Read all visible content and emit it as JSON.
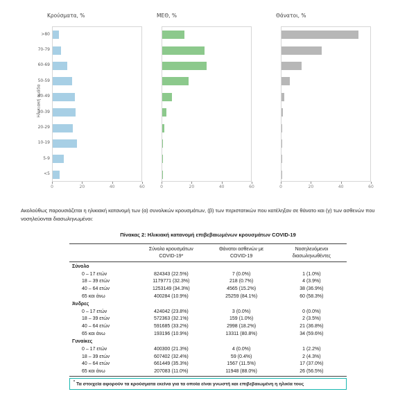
{
  "charts": {
    "y_axis_title": "Ηλικιακή ομάδα",
    "age_groups": [
      ">80",
      "70-79",
      "60-69",
      "50-59",
      "40-49",
      "30-39",
      "20-29",
      "10-19",
      "5-9",
      "<5"
    ]
  },
  "chart_data": [
    {
      "type": "bar",
      "orientation": "horizontal",
      "title": "Κρούσματα, %",
      "categories": [
        ">80",
        "70-79",
        "60-69",
        "50-59",
        "40-49",
        "30-39",
        "20-29",
        "10-19",
        "5-9",
        "<5"
      ],
      "values": [
        4.2,
        5.5,
        9.7,
        13,
        14.8,
        15.7,
        13.4,
        16.6,
        7.4,
        4.6
      ],
      "color": "#a7cfe5",
      "xlim": [
        0,
        60
      ],
      "x_ticks": [
        0,
        20,
        40,
        60
      ],
      "ylabel": "Ηλικιακή ομάδα",
      "grid": false,
      "legend": "none"
    },
    {
      "type": "bar",
      "orientation": "horizontal",
      "title": "ΜΕΘ, %",
      "categories": [
        ">80",
        "70-79",
        "60-69",
        "50-59",
        "40-49",
        "30-39",
        "20-29",
        "10-19",
        "5-9",
        "<5"
      ],
      "values": [
        15,
        28.5,
        30,
        18,
        6.5,
        3,
        1.2,
        0.5,
        0.2,
        0.5
      ],
      "color": "#8cc98c",
      "xlim": [
        0,
        60
      ],
      "x_ticks": [
        0,
        20,
        40,
        60
      ],
      "grid": false,
      "legend": "none"
    },
    {
      "type": "bar",
      "orientation": "horizontal",
      "title": "Θάνατοι, %",
      "categories": [
        ">80",
        "70-79",
        "60-69",
        "50-59",
        "40-49",
        "30-39",
        "20-29",
        "10-19",
        "5-9",
        "<5"
      ],
      "values": [
        52,
        27,
        13.5,
        5.5,
        2,
        0.8,
        0.3,
        0.1,
        0.1,
        0.2
      ],
      "color": "#b7b7b7",
      "xlim": [
        0,
        60
      ],
      "x_ticks": [
        0,
        20,
        40,
        60
      ],
      "grid": false,
      "legend": "none"
    }
  ],
  "intro_text": "Ακολούθως παρουσιάζεται η ηλικιακή κατανομή των (α) συνολικών κρουσμάτων, (β) των περιστατικών που κατέληξαν σε θάνατο και (γ) των ασθενών που νοσηλεύονται διασωληνωμένοι:",
  "table": {
    "title": "Πίνακας 2: Ηλικιακή κατανομή επιβεβαιωμένων κρουσμάτων COVID-19",
    "columns": [
      {
        "line1": "Σύνολο κρουσμάτων",
        "line2": "COVID-19*"
      },
      {
        "line1": "Θάνατοι ασθενών με",
        "line2": "COVID-19"
      },
      {
        "line1": "Νοσηλευόμενοι",
        "line2": "διασωληνωθέντες"
      }
    ],
    "sections": [
      {
        "label": "Σύνολο",
        "rows": [
          {
            "label": "0 – 17 ετών",
            "values": [
              "824343 (22.5%)",
              "7 (0.0%)",
              "1 (1.0%)"
            ]
          },
          {
            "label": "18 – 39 ετών",
            "values": [
              "1179771 (32.3%)",
              "218 (0.7%)",
              "4 (3.9%)"
            ]
          },
          {
            "label": "40 – 64 ετών",
            "values": [
              "1253149 (34.3%)",
              "4565 (15.2%)",
              "38 (36.9%)"
            ]
          },
          {
            "label": "65 και άνω",
            "values": [
              "400284 (10.9%)",
              "25259 (84.1%)",
              "60 (58.3%)"
            ]
          }
        ]
      },
      {
        "label": "Άνδρες",
        "rows": [
          {
            "label": "0 – 17 ετών",
            "values": [
              "424042 (23.8%)",
              "3 (0.0%)",
              "0 (0.0%)"
            ]
          },
          {
            "label": "18 – 39 ετών",
            "values": [
              "572363 (32.1%)",
              "159 (1.0%)",
              "2 (3.5%)"
            ]
          },
          {
            "label": "40 – 64 ετών",
            "values": [
              "591685 (33.2%)",
              "2998 (18.2%)",
              "21 (36.8%)"
            ]
          },
          {
            "label": "65 και άνω",
            "values": [
              "193196 (10.9%)",
              "13311 (80.8%)",
              "34 (59.6%)"
            ]
          }
        ]
      },
      {
        "label": "Γυναίκες",
        "rows": [
          {
            "label": "0 – 17 ετών",
            "values": [
              "400300 (21.3%)",
              "4 (0.0%)",
              "1 (2.2%)"
            ]
          },
          {
            "label": "18 – 39 ετών",
            "values": [
              "607402 (32.4%)",
              "59 (0.4%)",
              "2 (4.3%)"
            ]
          },
          {
            "label": "40 – 64 ετών",
            "values": [
              "661449 (35.3%)",
              "1567 (11.5%)",
              "17 (37.0%)"
            ]
          },
          {
            "label": "65 και άνω",
            "values": [
              "207083 (11.0%)",
              "11948 (88.0%)",
              "26 (56.5%)"
            ]
          }
        ]
      }
    ],
    "footnote_marker": "*",
    "footnote": "Τα στοιχεία αφορούν τα κρούσματα εκείνα για τα οποία είναι γνωστή και επιβεβαιωμένη η ηλικία τους"
  },
  "colors": {
    "cases_bar": "#a7cfe5",
    "icu_bar": "#8cc98c",
    "deaths_bar": "#b7b7b7",
    "footnote_border": "#18b8b0"
  }
}
